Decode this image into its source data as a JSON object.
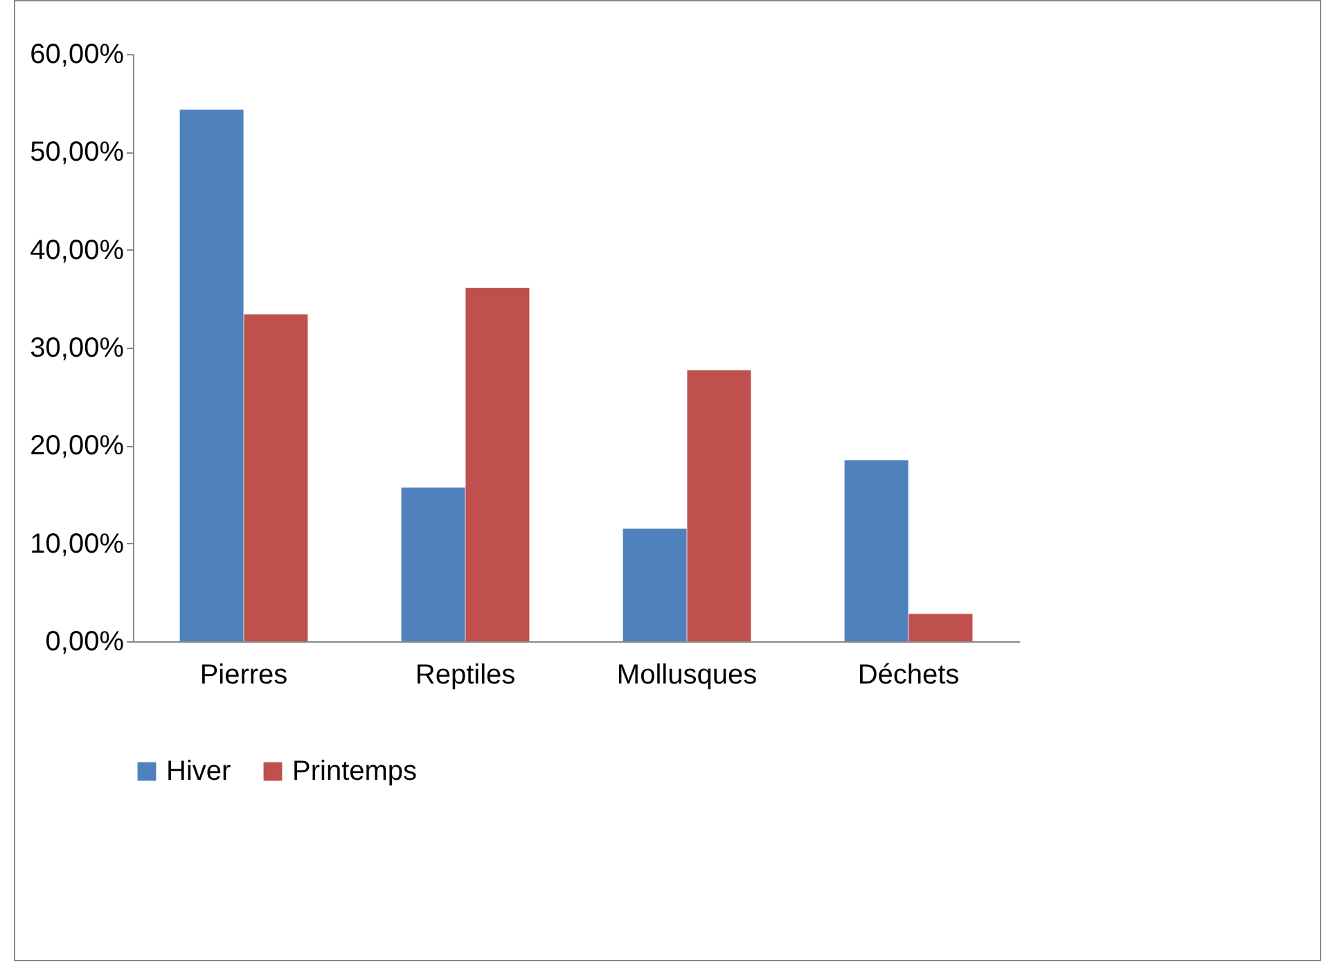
{
  "chart_data": {
    "type": "bar",
    "categories": [
      "Pierres",
      "Reptiles",
      "Mollusques",
      "Déchets"
    ],
    "series": [
      {
        "name": "Hiver",
        "color": "#4f81bd",
        "values": [
          54.3,
          15.7,
          11.5,
          18.5
        ]
      },
      {
        "name": "Printemps",
        "color": "#c0504d",
        "values": [
          33.4,
          36.1,
          27.7,
          2.8
        ]
      }
    ],
    "ylim": [
      0,
      60
    ],
    "yticks": [
      {
        "value": 0,
        "label": "0,00%"
      },
      {
        "value": 10,
        "label": "10,00%"
      },
      {
        "value": 20,
        "label": "20,00%"
      },
      {
        "value": 30,
        "label": "30,00%"
      },
      {
        "value": 40,
        "label": "40,00%"
      },
      {
        "value": 50,
        "label": "50,00%"
      },
      {
        "value": 60,
        "label": "60,00%"
      }
    ],
    "grid": false,
    "legend": "bottom"
  }
}
